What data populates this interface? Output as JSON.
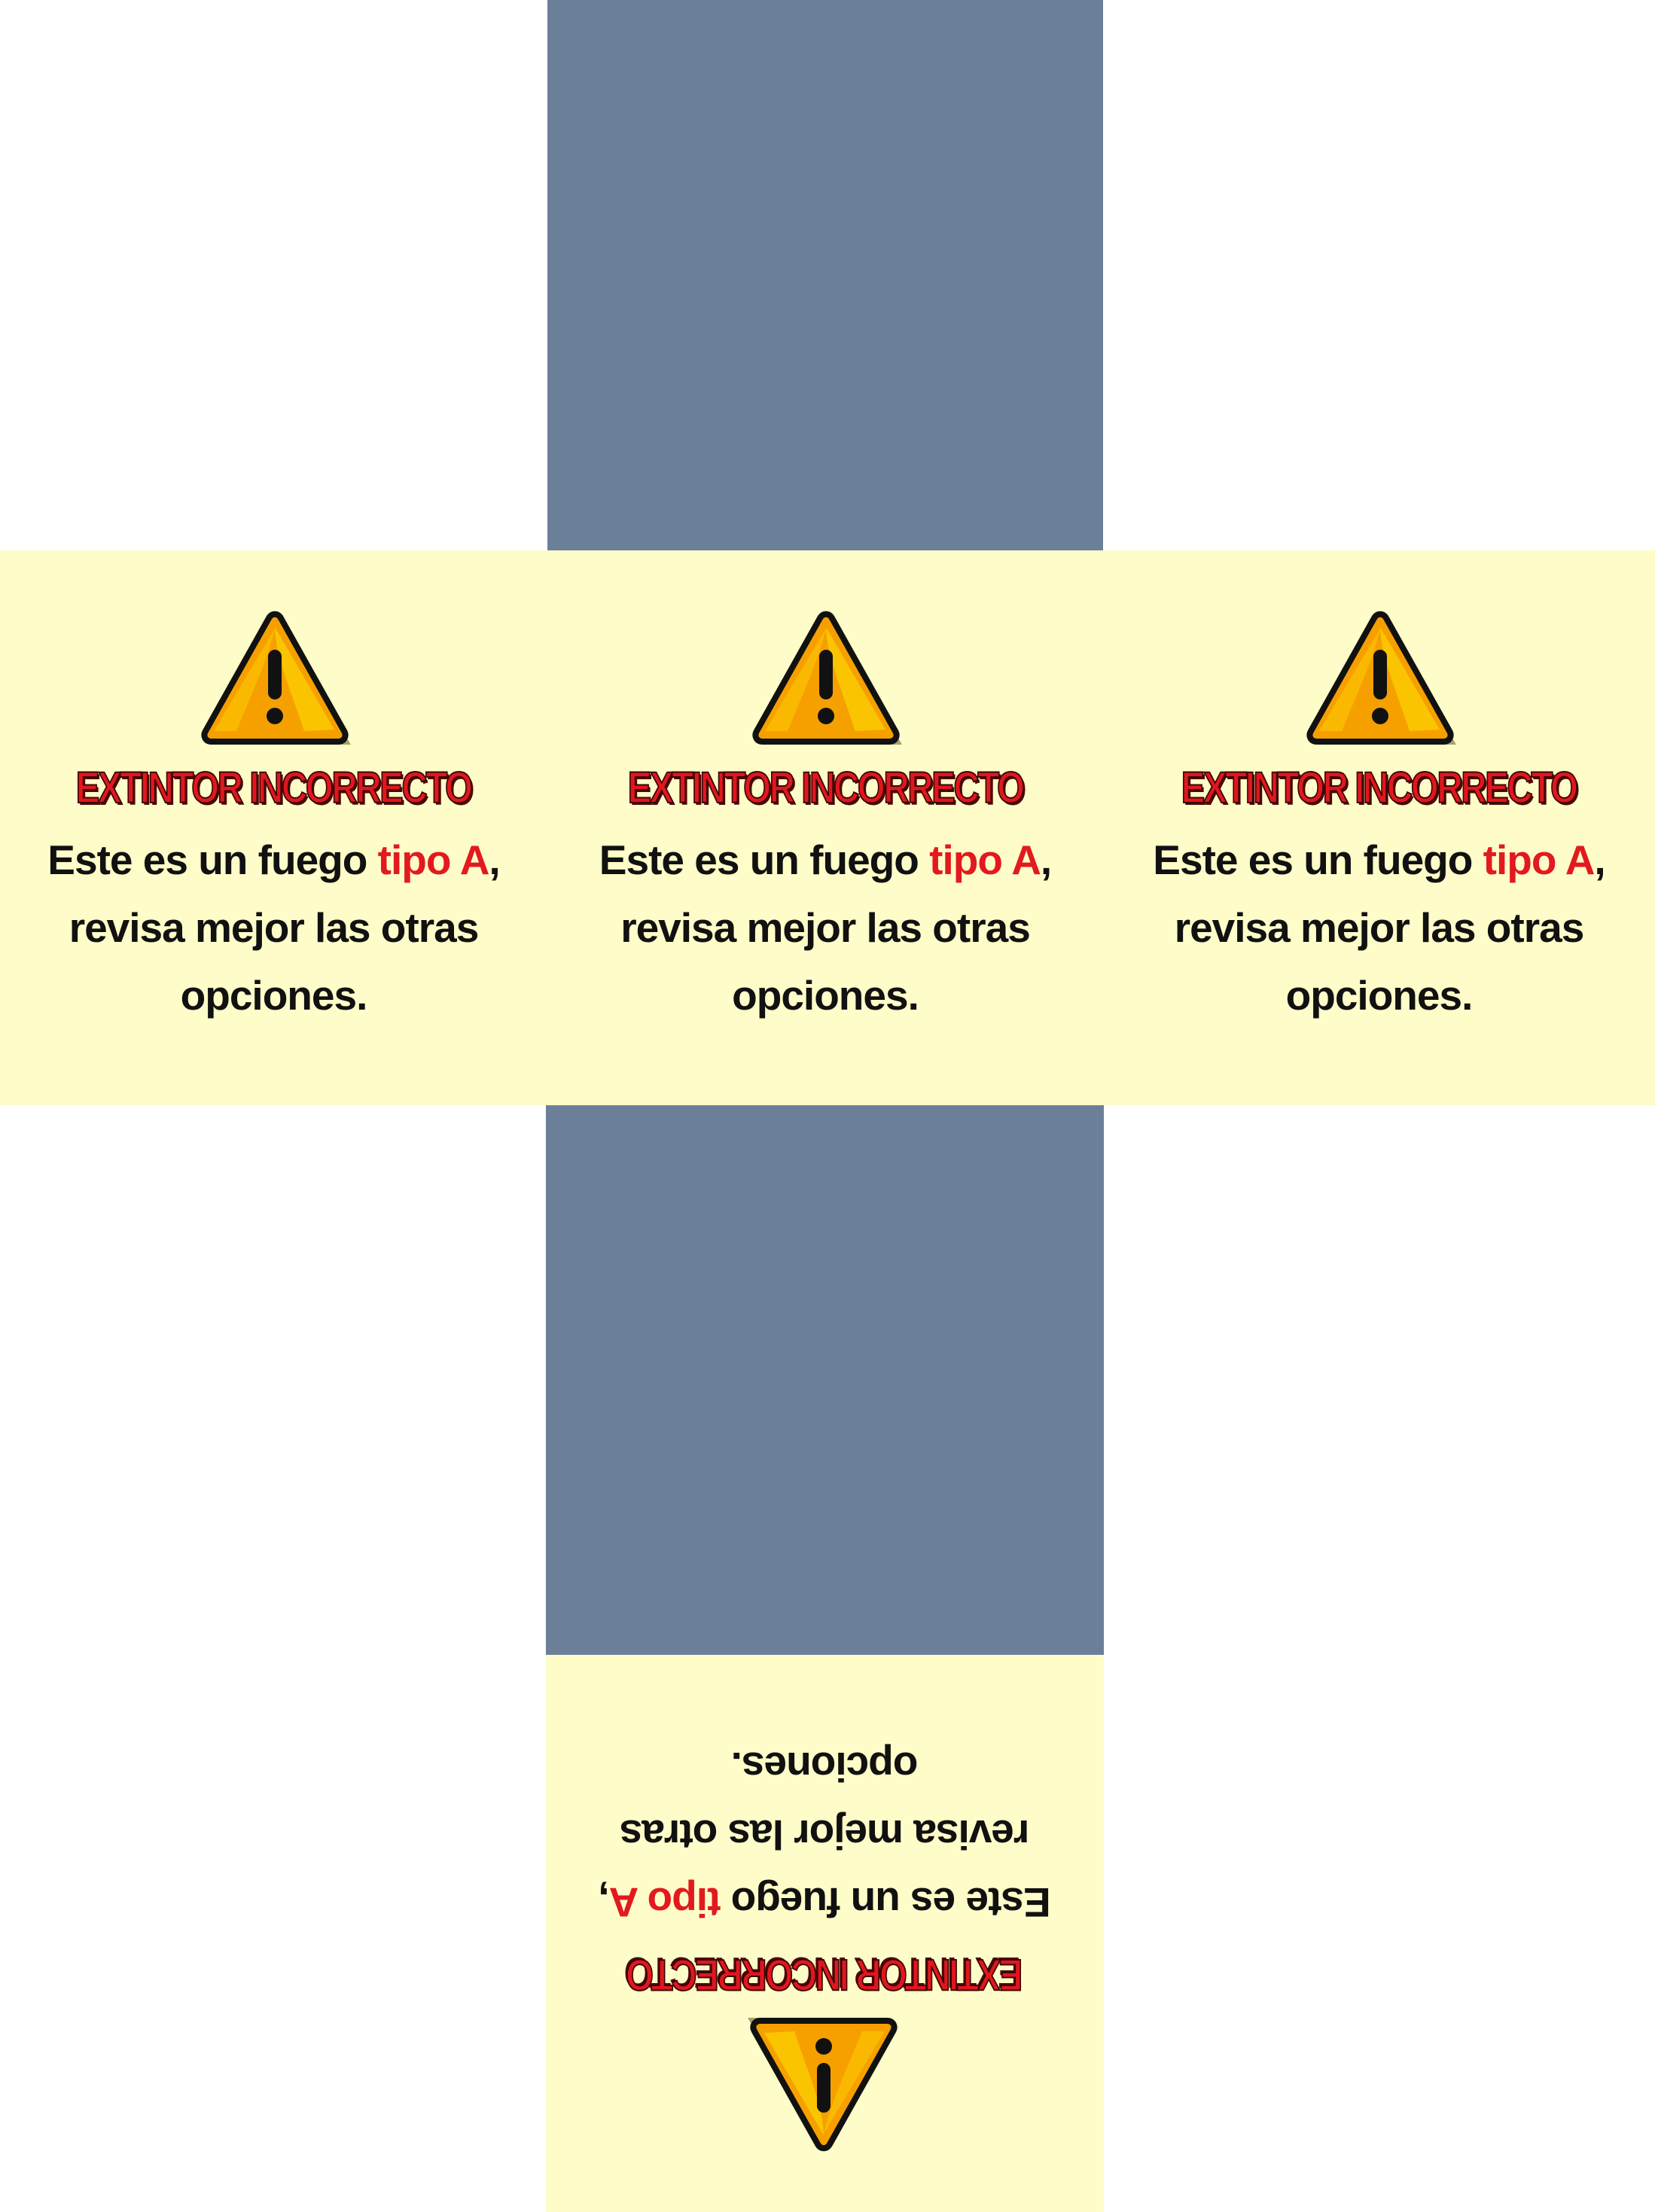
{
  "colors": {
    "slate_panel": "#6b7f99",
    "card_background": "#fefcc8",
    "heading_red": "#e0171d",
    "highlight_red": "#e21a1f",
    "icon_orange": "#f6a000",
    "icon_yellow": "#fbc400"
  },
  "cards": [
    {
      "icon": "warning-triangle-icon",
      "heading": "EXTINTOR INCORRECTO",
      "text_before": "Este es un fuego ",
      "highlight": "tipo A",
      "text_after": ", revisa mejor las otras opciones."
    },
    {
      "icon": "warning-triangle-icon",
      "heading": "EXTINTOR INCORRECTO",
      "text_before": "Este es un fuego ",
      "highlight": "tipo A",
      "text_after": ", revisa mejor las otras opciones."
    },
    {
      "icon": "warning-triangle-icon",
      "heading": "EXTINTOR INCORRECTO",
      "text_before": "Este es un fuego ",
      "highlight": "tipo A",
      "text_after": ", revisa mejor las otras opciones."
    },
    {
      "icon": "warning-triangle-icon",
      "heading": "EXTINTOR INCORRECTO",
      "text_before": "Este es un fuego ",
      "highlight": "tipo A",
      "text_after": ", revisa mejor las otras opciones."
    }
  ]
}
